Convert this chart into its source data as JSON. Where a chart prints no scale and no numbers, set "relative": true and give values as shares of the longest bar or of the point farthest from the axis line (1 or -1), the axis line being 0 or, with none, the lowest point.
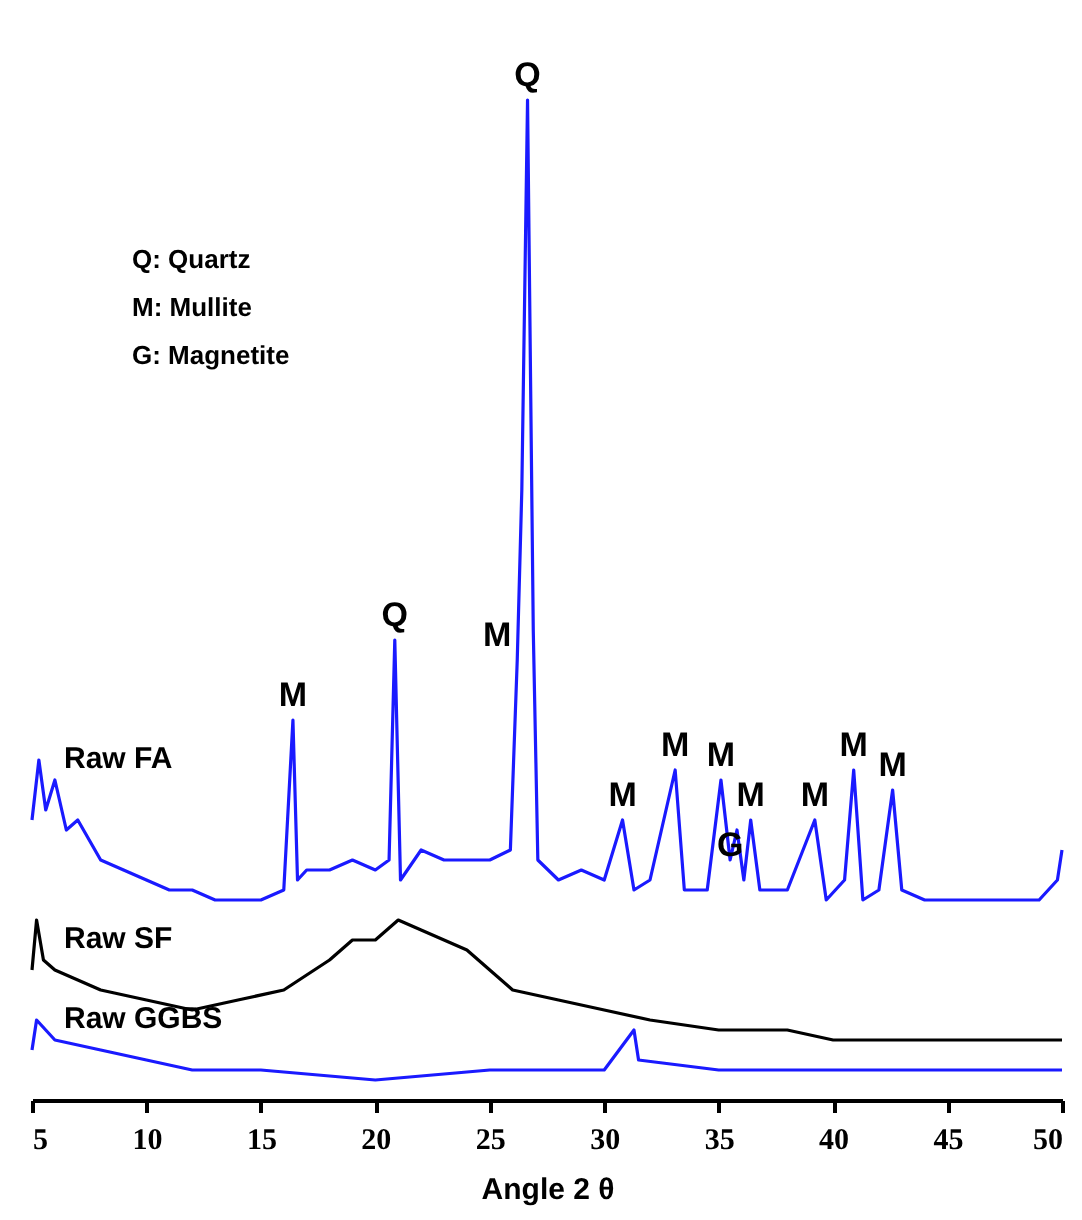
{
  "chart_data": {
    "type": "line",
    "relative": true,
    "xlabel": "Angle 2 θ",
    "xlim": [
      5,
      50
    ],
    "xticks": [
      5,
      10,
      15,
      20,
      25,
      30,
      35,
      40,
      45,
      50
    ],
    "grid": false,
    "annotations": [
      "Q: Quartz",
      "M: Mullite",
      "G: Magnetite",
      {
        "text": "Q",
        "x": 26.65,
        "y": 1
      },
      {
        "text": "Q",
        "x": 20.85,
        "y": 0.46
      },
      {
        "text": "M",
        "x": 26.2,
        "y": 0.44
      },
      {
        "text": "M",
        "x": 16.4,
        "y": 0.38
      },
      {
        "text": "M",
        "x": 30.8,
        "y": 0.28
      },
      {
        "text": "M",
        "x": 33.1,
        "y": 0.33
      },
      {
        "text": "M",
        "x": 35.1,
        "y": 0.32
      },
      {
        "text": "G",
        "x": 35.5,
        "y": 0.23
      },
      {
        "text": "M",
        "x": 36.4,
        "y": 0.28
      },
      {
        "text": "M",
        "x": 39.2,
        "y": 0.28
      },
      {
        "text": "M",
        "x": 40.9,
        "y": 0.33
      },
      {
        "text": "M",
        "x": 42.6,
        "y": 0.31
      }
    ],
    "series": [
      {
        "name": "Raw FA",
        "color": "#1a1aff",
        "x": [
          5,
          5.3,
          5.6,
          6,
          6.5,
          7,
          8,
          9,
          10,
          11,
          12,
          13,
          14,
          15,
          16,
          16.4,
          16.6,
          17,
          18,
          19,
          20,
          20.6,
          20.85,
          21.1,
          22,
          23,
          24,
          25,
          25.9,
          26.2,
          26.4,
          26.65,
          26.9,
          27.1,
          28,
          29,
          30,
          30.8,
          31.3,
          32,
          33.1,
          33.5,
          34.5,
          35.1,
          35.5,
          35.8,
          36.1,
          36.4,
          36.8,
          38,
          39.2,
          39.7,
          40.5,
          40.9,
          41.3,
          42,
          42.6,
          43,
          44,
          45,
          46,
          47,
          48,
          49,
          49.8,
          50
        ],
        "values": [
          0.28,
          0.34,
          0.29,
          0.32,
          0.27,
          0.28,
          0.24,
          0.23,
          0.22,
          0.21,
          0.21,
          0.2,
          0.2,
          0.2,
          0.21,
          0.38,
          0.22,
          0.23,
          0.23,
          0.24,
          0.23,
          0.24,
          0.46,
          0.22,
          0.25,
          0.24,
          0.24,
          0.24,
          0.25,
          0.44,
          0.61,
          1,
          0.47,
          0.24,
          0.22,
          0.23,
          0.22,
          0.28,
          0.21,
          0.22,
          0.33,
          0.21,
          0.21,
          0.32,
          0.24,
          0.27,
          0.22,
          0.28,
          0.21,
          0.21,
          0.28,
          0.2,
          0.22,
          0.33,
          0.2,
          0.21,
          0.31,
          0.21,
          0.2,
          0.2,
          0.2,
          0.2,
          0.2,
          0.2,
          0.22,
          0.25
        ]
      },
      {
        "name": "Raw SF",
        "color": "#000000",
        "x": [
          5,
          5.2,
          5.5,
          6,
          7,
          8,
          10,
          12,
          14,
          16,
          18,
          19,
          20,
          21,
          22,
          23,
          24,
          25,
          26,
          28,
          30,
          32,
          35,
          38,
          40,
          45,
          50
        ],
        "values": [
          0.13,
          0.18,
          0.14,
          0.13,
          0.12,
          0.11,
          0.1,
          0.09,
          0.1,
          0.11,
          0.14,
          0.16,
          0.16,
          0.18,
          0.17,
          0.16,
          0.15,
          0.13,
          0.11,
          0.1,
          0.09,
          0.08,
          0.07,
          0.07,
          0.06,
          0.06,
          0.06
        ]
      },
      {
        "name": "Raw GGBS",
        "color": "#1a1aff",
        "x": [
          5,
          5.2,
          6,
          8,
          10,
          12,
          15,
          20,
          25,
          30,
          31.3,
          31.5,
          35,
          40,
          45,
          50
        ],
        "values": [
          0.05,
          0.08,
          0.06,
          0.05,
          0.04,
          0.03,
          0.03,
          0.02,
          0.03,
          0.03,
          0.07,
          0.04,
          0.03,
          0.03,
          0.03,
          0.03
        ]
      }
    ]
  }
}
